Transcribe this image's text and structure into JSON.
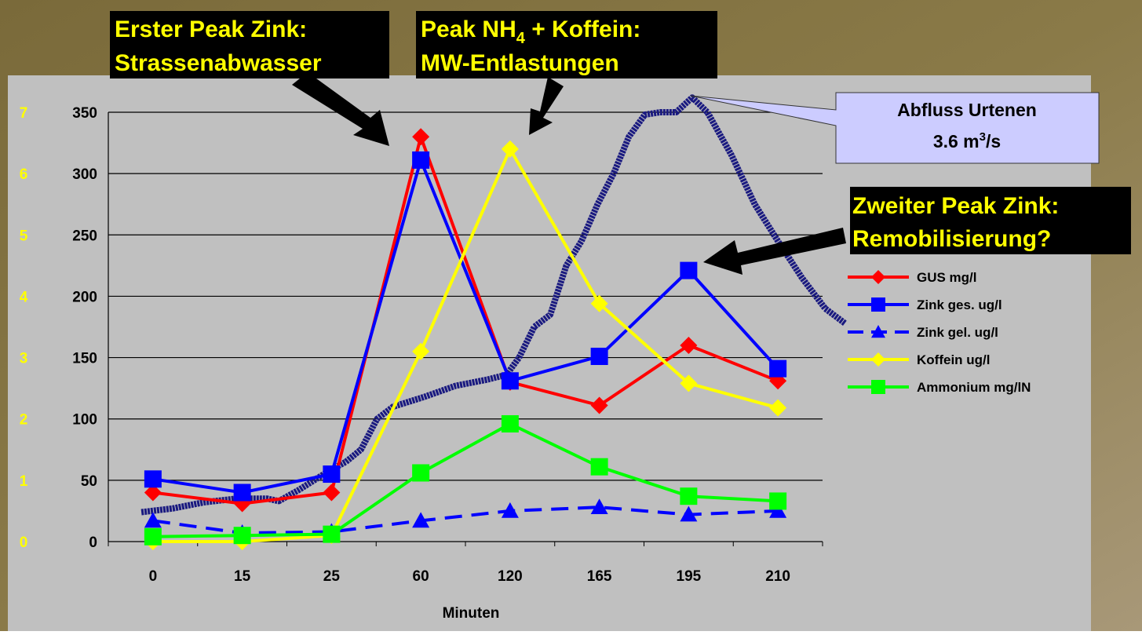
{
  "chart_data": {
    "type": "line",
    "x_label": "Minuten",
    "categories": [
      "0",
      "15",
      "25",
      "60",
      "120",
      "165",
      "195",
      "210"
    ],
    "ylim": [
      0,
      350
    ],
    "yticks": [
      0,
      50,
      100,
      150,
      200,
      250,
      300,
      350
    ],
    "y2lim": [
      0,
      7
    ],
    "y2ticks": [
      0,
      1,
      2,
      3,
      4,
      5,
      6,
      7
    ],
    "grid": true,
    "series": [
      {
        "name": "GUS mg/l",
        "color": "#ff0000",
        "marker": "diamond",
        "dash": false,
        "values": [
          40,
          31,
          40,
          330,
          130,
          111,
          160,
          131
        ]
      },
      {
        "name": "Zink ges. ug/l",
        "color": "#0000ff",
        "marker": "square",
        "dash": false,
        "values": [
          51,
          40,
          55,
          311,
          131,
          151,
          221,
          141
        ]
      },
      {
        "name": "Zink gel. ug/l",
        "color": "#0000ff",
        "marker": "triangle",
        "dash": true,
        "values": [
          17,
          7,
          8,
          17,
          25,
          28,
          22,
          25
        ]
      },
      {
        "name": "Koffein ug/l",
        "color": "#ffff00",
        "marker": "diamond",
        "dash": false,
        "values": [
          0,
          0,
          5,
          155,
          320,
          194,
          129,
          109
        ]
      },
      {
        "name": "Ammonium mg/lN",
        "color": "#00ff00",
        "marker": "square",
        "dash": false,
        "values": [
          4,
          5,
          6,
          56,
          96,
          61,
          37,
          33
        ]
      }
    ],
    "flow": {
      "color": "#1a1a80",
      "x": [
        -0.13,
        0.22,
        0.57,
        0.93,
        1.28,
        1.41,
        1.63,
        1.98,
        2.16,
        2.33,
        2.51,
        2.69,
        3.04,
        3.39,
        3.74,
        3.96,
        4.1,
        4.27,
        4.45,
        4.63,
        4.8,
        4.98,
        5.16,
        5.33,
        5.51,
        5.68,
        5.86,
        6.04,
        6.21,
        6.48,
        6.74,
        7.0,
        7.27,
        7.53,
        7.75
      ],
      "values": [
        24,
        27,
        32,
        35,
        35,
        33,
        42,
        58,
        65,
        75,
        100,
        110,
        118,
        127,
        132,
        136,
        150,
        175,
        185,
        225,
        245,
        275,
        300,
        330,
        348,
        350,
        350,
        362,
        350,
        315,
        275,
        245,
        215,
        190,
        178
      ]
    },
    "annotations": {
      "first_peak": [
        "Erster Peak Zink:",
        "Strassenabwasser"
      ],
      "nh4_peak": {
        "line1": [
          "Peak NH",
          "4",
          " + Koffein:"
        ],
        "line2": "MW-Entlastungen"
      },
      "second_peak": [
        "Zweiter Peak Zink:",
        "Remobilisierung?"
      ],
      "callout": {
        "line1": "Abfluss Urtenen",
        "line2": [
          "3.6 m",
          "3",
          "/s"
        ]
      }
    }
  }
}
